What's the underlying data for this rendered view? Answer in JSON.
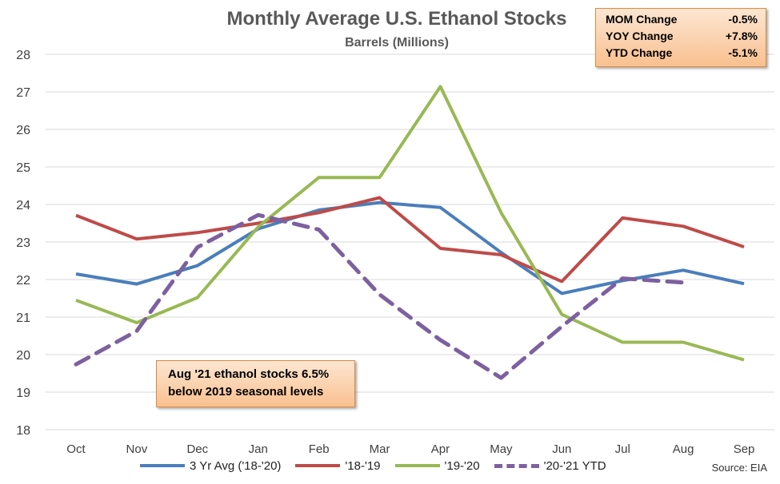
{
  "chart_data": {
    "type": "line",
    "title": "Monthly Average U.S. Ethanol Stocks",
    "subtitle": "Barrels (Millions)",
    "categories": [
      "Oct",
      "Nov",
      "Dec",
      "Jan",
      "Feb",
      "Mar",
      "Apr",
      "May",
      "Jun",
      "Jul",
      "Aug",
      "Sep"
    ],
    "ylim": [
      18,
      28
    ],
    "yticks": [
      "18",
      "19",
      "20",
      "21",
      "22",
      "23",
      "24",
      "25",
      "26",
      "27",
      "28"
    ],
    "grid": true,
    "legend_position": "bottom",
    "series": [
      {
        "name": "3 Yr Avg ('18-'20)",
        "color": "#4a7ebb",
        "dashed": false,
        "values": [
          22.15,
          21.88,
          22.37,
          23.35,
          23.85,
          24.05,
          23.92,
          22.72,
          21.63,
          21.97,
          22.25,
          21.89
        ]
      },
      {
        "name": "'18-'19",
        "color": "#be4b48",
        "dashed": false,
        "values": [
          23.71,
          23.08,
          23.25,
          23.5,
          23.78,
          24.18,
          22.83,
          22.66,
          21.95,
          23.64,
          23.42,
          22.87
        ]
      },
      {
        "name": "'19-'20",
        "color": "#98b954",
        "dashed": false,
        "values": [
          21.45,
          20.85,
          21.52,
          23.4,
          24.72,
          24.72,
          27.14,
          23.78,
          21.07,
          20.33,
          20.33,
          19.86
        ]
      },
      {
        "name": "'20-'21 YTD",
        "color": "#7d60a0",
        "dashed": true,
        "values": [
          19.74,
          20.63,
          22.86,
          23.72,
          23.33,
          21.6,
          20.39,
          19.38,
          20.75,
          22.03,
          21.92,
          null
        ]
      }
    ]
  },
  "stats": [
    {
      "label": "MOM Change",
      "value": "-0.5%"
    },
    {
      "label": "YOY Change",
      "value": "+7.8%"
    },
    {
      "label": "YTD Change",
      "value": "-5.1%"
    }
  ],
  "callout": {
    "line1": "Aug '21 ethanol stocks 6.5%",
    "line2": "below 2019 seasonal levels"
  },
  "source": "Source: EIA"
}
